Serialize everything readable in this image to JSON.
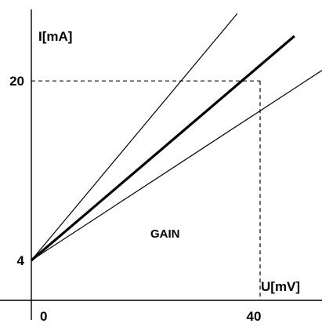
{
  "chart_data": {
    "type": "line",
    "title": "",
    "xlabel": "U[mV]",
    "ylabel": "I[mA]",
    "x_ticks": [
      {
        "value": 0,
        "label": "0"
      },
      {
        "value": 40,
        "label": "40"
      }
    ],
    "y_ticks": [
      {
        "value": 4,
        "label": "4"
      },
      {
        "value": 20,
        "label": "20"
      }
    ],
    "xlim": [
      0,
      50
    ],
    "ylim": [
      0,
      26
    ],
    "grid": false,
    "annotation": "GAIN",
    "reference": {
      "x": 40,
      "y": 20
    },
    "series": [
      {
        "x": [
          0,
          36
        ],
        "y": [
          4,
          26
        ],
        "weight": "thin"
      },
      {
        "x": [
          0,
          46
        ],
        "y": [
          4,
          24
        ],
        "weight": "thick"
      },
      {
        "x": [
          0,
          51
        ],
        "y": [
          4,
          21
        ],
        "weight": "thin"
      }
    ],
    "colors": {
      "line": "#000000",
      "background": "#ffffff"
    }
  }
}
